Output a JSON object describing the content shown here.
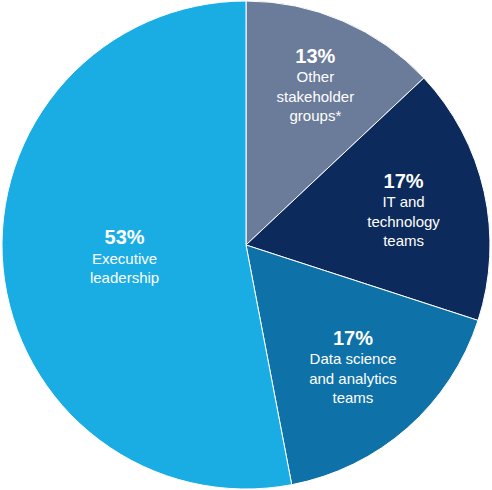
{
  "chart_data": {
    "type": "pie",
    "categories": [
      "Other stakeholder groups*",
      "IT and technology teams",
      "Data science and analytics teams",
      "Executive leadership"
    ],
    "values": [
      13,
      17,
      17,
      53
    ],
    "value_labels": [
      "13%",
      "17%",
      "17%",
      "53%"
    ],
    "colors": [
      "#6b7b9a",
      "#0c2a5b",
      "#0e72a8",
      "#1aade4"
    ],
    "data_labels": true
  }
}
